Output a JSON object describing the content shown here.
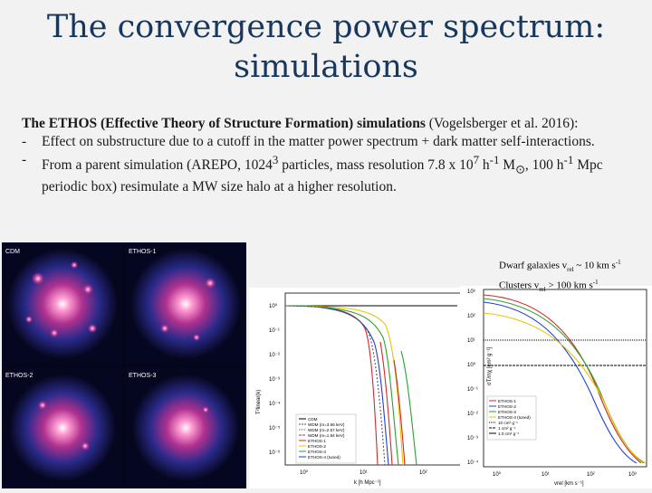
{
  "title": {
    "line1": "The convergence power spectrum:",
    "line2": "simulations"
  },
  "intro": {
    "bold": "The ETHOS (Effective Theory of Structure Formation) simulations",
    "rest": " (Vogelsberger et al. 2016):"
  },
  "bullets": {
    "dash": "-",
    "b1": "Effect on substructure due to a cutoff in the matter power spectrum + dark matter self-interactions.",
    "b2_a": "From a parent simulation (AREPO, 1024",
    "b2_exp1": "3",
    "b2_b": " particles, mass resolution 7.8 x 10",
    "b2_exp2": "7",
    "b2_c": " h",
    "b2_exp3": "-1",
    "b2_d": " M",
    "b2_sun": "⊙",
    "b2_e": ", 100 h",
    "b2_exp4": "-1",
    "b2_f": " Mpc periodic box) resimulate a MW size halo at a higher resolution."
  },
  "note": {
    "l1_a": "Dwarf galaxies v",
    "l1_sub": "rel",
    "l1_b": " ~ 10 km s",
    "l1_sup": "-1",
    "l2_a": "Clusters v",
    "l2_sub": "rel",
    "l2_b": " > 100 km s",
    "l2_sup": "-1"
  },
  "sim_panels": [
    "CDM",
    "ETHOS-1",
    "ETHOS-2",
    "ETHOS-3"
  ],
  "plot1": {
    "ylabel": "T²linear(k)",
    "xlabel": "k [h Mpc⁻¹]",
    "yticks": [
      "10⁰",
      "10⁻¹",
      "10⁻²",
      "10⁻³",
      "10⁻⁴",
      "10⁻⁵",
      "10⁻⁶"
    ],
    "xticks": [
      "10⁰",
      "10¹",
      "10²"
    ],
    "legend": [
      "CDM",
      "WDM (m=3.66 keV)",
      "WDM (m=2.67 keV)",
      "WDM (m=1.94 keV)",
      "ETHOS-1",
      "ETHOS-2",
      "ETHOS-3",
      "ETHOS-4 (tuned)"
    ]
  },
  "plot2": {
    "ylabel": "σT/mχ [cm² g⁻¹]",
    "xlabel": "vrel [km s⁻¹]",
    "yticks": [
      "10³",
      "10²",
      "10¹",
      "10⁰",
      "10⁻¹",
      "10⁻²",
      "10⁻³",
      "10⁻⁴"
    ],
    "xticks": [
      "10⁰",
      "10¹",
      "10²",
      "10³"
    ],
    "legend": [
      "ETHOS-1",
      "ETHOS-2",
      "ETHOS-3",
      "ETHOS-4 (tuned)",
      "10 cm² g⁻¹",
      "1 cm² g⁻¹",
      "1.0 cm² g⁻¹"
    ]
  },
  "colors": {
    "title": "#17375e",
    "cdm": "#000000",
    "ethos1": "#d62728",
    "ethos2": "#1f3fd0",
    "ethos3": "#2ca02c",
    "ethos4": "#e8c400"
  }
}
